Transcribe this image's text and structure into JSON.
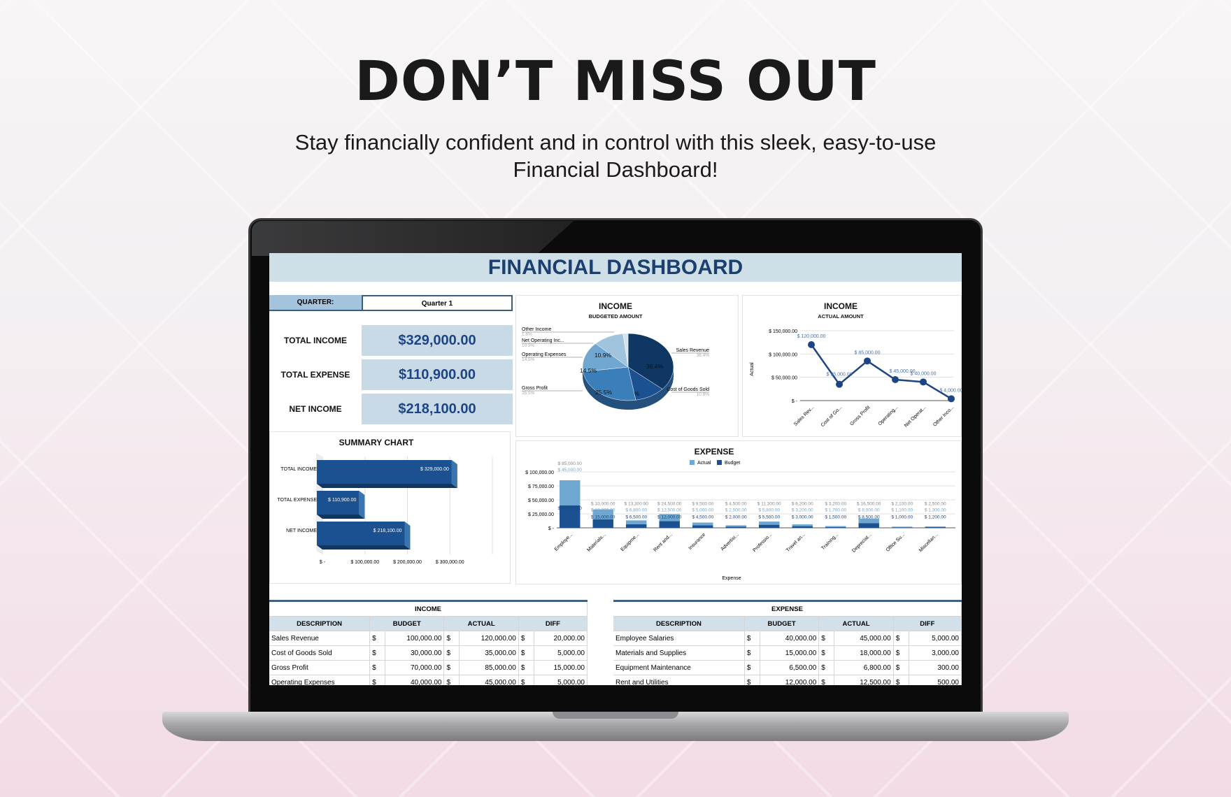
{
  "promo": {
    "headline": "DON’T MISS OUT",
    "subtitle_line1": "Stay financially confident and in control with this sleek, easy-to-use",
    "subtitle_line2": "Financial Dashboard!"
  },
  "dashboard": {
    "title": "FINANCIAL DASHBOARD",
    "quarter_label": "QUARTER:",
    "quarter_value": "Quarter 1",
    "kpis": [
      {
        "label": "TOTAL INCOME",
        "value": "$329,000.00"
      },
      {
        "label": "TOTAL EXPENSE",
        "value": "$110,900.00"
      },
      {
        "label": "NET INCOME",
        "value": "$218,100.00"
      }
    ],
    "colors": {
      "header_bg": "#cfdfe8",
      "title": "#1b3f6e",
      "kpi_bg": "#c9dae7",
      "kpi_text": "#1d4585",
      "bar": "#1b5190",
      "light": "#6fa7d0"
    }
  },
  "chart_data": [
    {
      "type": "bar",
      "orientation": "horizontal",
      "title": "SUMMARY CHART",
      "categories": [
        "TOTAL INCOME",
        "TOTAL EXPENSE",
        "NET INCOME"
      ],
      "values": [
        329000,
        110900,
        218100
      ],
      "value_labels": [
        "$ 329,000.00",
        "$ 110,900.00",
        "$ 218,100.00"
      ],
      "xlim": [
        0,
        400000
      ],
      "xticks": [
        "$ -",
        "$ 100,000.00",
        "$ 200,000.00",
        "$ 300,000.00"
      ],
      "grid": true
    },
    {
      "type": "pie",
      "title": "INCOME",
      "subtitle": "BUDGETED AMOUNT",
      "slices": [
        {
          "name": "Sales Revenue",
          "value": 36.4,
          "label": "36.4%",
          "color": "#0f3763"
        },
        {
          "name": "Cost of Goods Sold",
          "value": 10.9,
          "label": "10.9%",
          "color": "#1b5190"
        },
        {
          "name": "Gross Profit",
          "value": 25.5,
          "label": "25.5%",
          "color": "#3a7fba"
        },
        {
          "name": "Operating Expenses",
          "value": 14.5,
          "label": "14.5%",
          "color": "#6fa7d0"
        },
        {
          "name": "Net Operating Inc...",
          "value": 10.9,
          "label": "10.9%",
          "color": "#a1c4de"
        },
        {
          "name": "Other Income",
          "value": 1.8,
          "label": "1.8%",
          "color": "#d4e2ec"
        }
      ]
    },
    {
      "type": "line",
      "title": "INCOME",
      "subtitle": "ACTUAL AMOUNT",
      "ylabel": "Actual",
      "categories": [
        "Sales Rev...",
        "Cost of Go...",
        "Gross Profit",
        "Operating...",
        "Net Operat...",
        "Other Inco..."
      ],
      "values": [
        120000,
        35000,
        85000,
        45000,
        40000,
        4000
      ],
      "value_labels": [
        "$ 120,000.00",
        "$ 35,000.00",
        "$ 85,000.00",
        "$ 45,000.00",
        "$ 40,000.00",
        "$ 4,000.00"
      ],
      "ylim": [
        0,
        150000
      ],
      "yticks": [
        "$ -",
        "$ 50,000.00",
        "$ 100,000.00",
        "$ 150,000.00"
      ],
      "color": "#1d4585",
      "grid": true
    },
    {
      "type": "bar",
      "stacked": true,
      "title": "EXPENSE",
      "xlabel": "Expense",
      "legend": "top",
      "categories": [
        "Employe...",
        "Materials...",
        "Equipme...",
        "Rent and...",
        "Insurance",
        "Advertisi...",
        "Professio...",
        "Travel an...",
        "Training...",
        "Depreciat...",
        "Office Su...",
        "Miscellan..."
      ],
      "series": [
        {
          "name": "Budget",
          "color": "#1b5190",
          "values": [
            40000,
            15000,
            6500,
            12000,
            4500,
            2000,
            5500,
            3000,
            1500,
            8500,
            1000,
            1200
          ]
        },
        {
          "name": "Actual",
          "color": "#6fa7d0",
          "values": [
            45000,
            18000,
            6800,
            12500,
            5000,
            2500,
            5800,
            3200,
            1700,
            8000,
            1100,
            1300
          ]
        }
      ],
      "totals": [
        85000,
        33000,
        13300,
        24500,
        9500,
        4500,
        11300,
        6200,
        3200,
        16500,
        2100,
        2500
      ],
      "ylim": [
        0,
        100000
      ],
      "yticks": [
        "$ -",
        "$ 25,000.00",
        "$ 50,000.00",
        "$ 75,000.00",
        "$ 100,000.00"
      ],
      "grid": true
    }
  ],
  "income_table": {
    "title": "INCOME",
    "headers": [
      "DESCRIPTION",
      "BUDGET",
      "ACTUAL",
      "DIFF"
    ],
    "rows": [
      [
        "Sales Revenue",
        "100,000.00",
        "120,000.00",
        "20,000.00"
      ],
      [
        "Cost of Goods Sold",
        "30,000.00",
        "35,000.00",
        "5,000.00"
      ],
      [
        "Gross Profit",
        "70,000.00",
        "85,000.00",
        "15,000.00"
      ],
      [
        "Operating Expenses",
        "40,000.00",
        "45,000.00",
        "5,000.00"
      ]
    ]
  },
  "expense_table": {
    "title": "EXPENSE",
    "headers": [
      "DESCRIPTION",
      "BUDGET",
      "ACTUAL",
      "DIFF"
    ],
    "rows": [
      [
        "Employee Salaries",
        "40,000.00",
        "45,000.00",
        "5,000.00"
      ],
      [
        "Materials and Supplies",
        "15,000.00",
        "18,000.00",
        "3,000.00"
      ],
      [
        "Equipment Maintenance",
        "6,500.00",
        "6,800.00",
        "300.00"
      ],
      [
        "Rent and Utilities",
        "12,000.00",
        "12,500.00",
        "500.00"
      ]
    ]
  },
  "currency_symbol": "$"
}
